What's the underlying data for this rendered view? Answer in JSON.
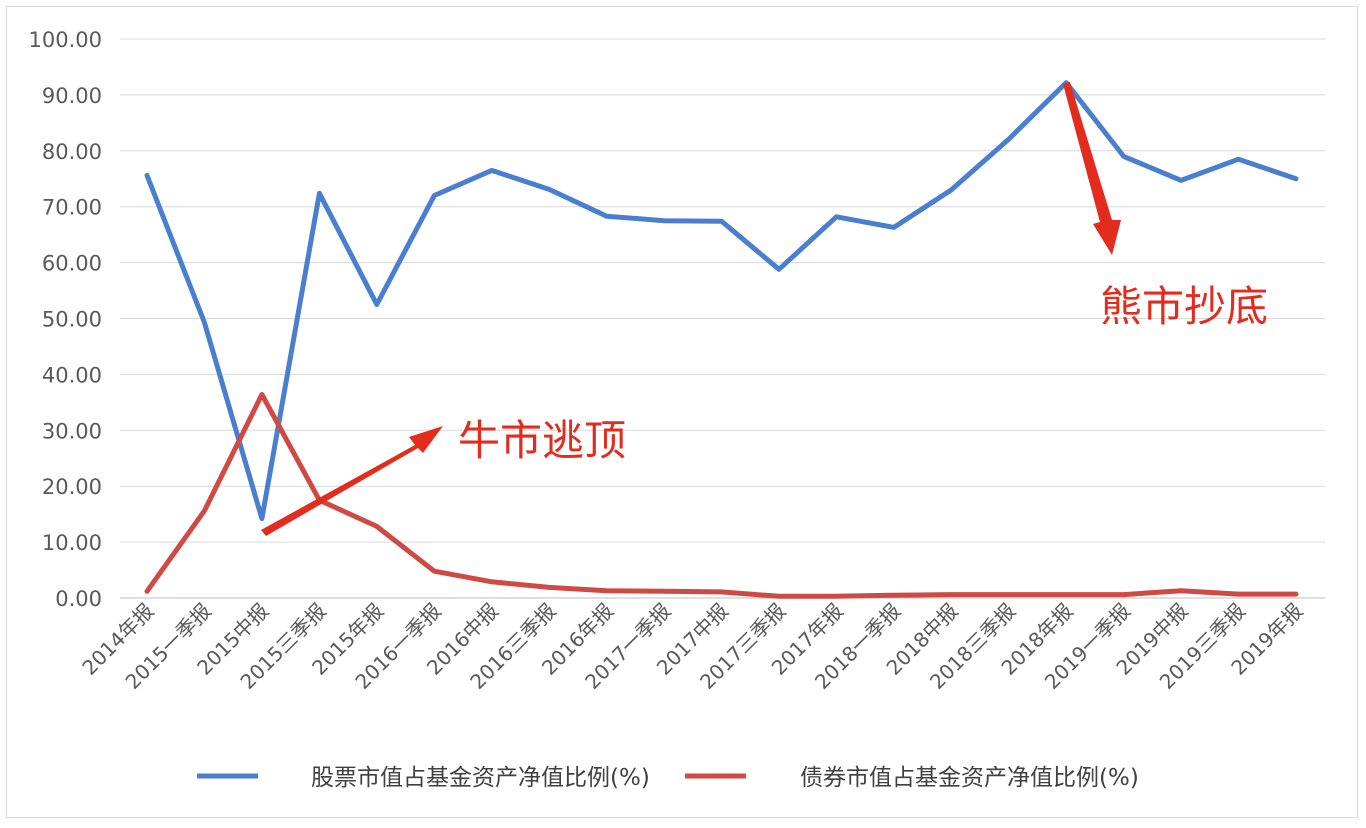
{
  "chart_data": {
    "type": "line",
    "categories": [
      "2014年报",
      "2015一季报",
      "2015中报",
      "2015三季报",
      "2015年报",
      "2016一季报",
      "2016中报",
      "2016三季报",
      "2016年报",
      "2017一季报",
      "2017中报",
      "2017三季报",
      "2017年报",
      "2018一季报",
      "2018中报",
      "2018三季报",
      "2018年报",
      "2019一季报",
      "2019中报",
      "2019三季报",
      "2019年报"
    ],
    "series": [
      {
        "name": "股票市值占基金资产净值比例(%)",
        "color": "#4a7fcf",
        "values": [
          75.6,
          49.3,
          14.2,
          72.4,
          52.5,
          72.0,
          76.5,
          73.1,
          68.3,
          67.5,
          67.4,
          58.8,
          68.2,
          66.3,
          73.0,
          82.1,
          92.2,
          79.0,
          74.7,
          78.5,
          75.0
        ]
      },
      {
        "name": "债券市值占基金资产净值比例(%)",
        "color": "#cf4a45",
        "values": [
          1.2,
          15.6,
          36.4,
          17.5,
          12.8,
          4.8,
          2.9,
          1.9,
          1.3,
          1.2,
          1.1,
          0.3,
          0.3,
          0.5,
          0.6,
          0.6,
          0.6,
          0.6,
          1.3,
          0.7,
          0.7
        ]
      }
    ],
    "y_ticks": [
      "100.00",
      "90.00",
      "80.00",
      "70.00",
      "60.00",
      "50.00",
      "40.00",
      "30.00",
      "20.00",
      "10.00",
      "0.00"
    ],
    "ylim": [
      0,
      100
    ],
    "grid": true,
    "legend_position": "bottom",
    "annotations": [
      {
        "text": "牛市逃顶",
        "color": "#e32b1e"
      },
      {
        "text": "熊市抄底",
        "color": "#e32b1e"
      }
    ],
    "title": "",
    "xlabel": "",
    "ylabel": ""
  }
}
